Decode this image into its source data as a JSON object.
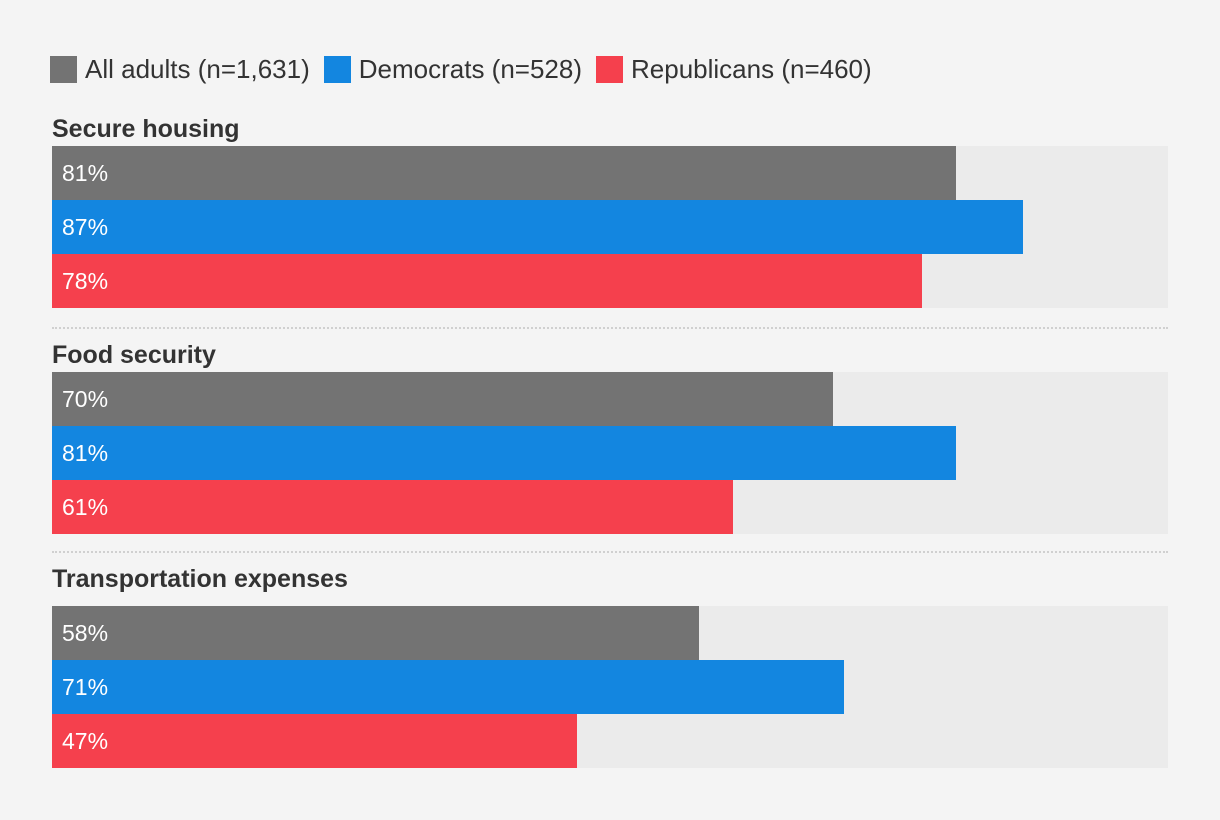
{
  "chart_data": {
    "type": "bar",
    "orientation": "horizontal",
    "title": "",
    "xlabel": "",
    "ylabel": "",
    "xlim": [
      0,
      100
    ],
    "legend_position": "top-left",
    "categories": [
      "Secure housing",
      "Food security",
      "Transportation expenses"
    ],
    "series": [
      {
        "name": "All adults (n=1,631)",
        "color": "#737373",
        "values": [
          81,
          70,
          58
        ],
        "labels": [
          "81%",
          "70%",
          "58%"
        ]
      },
      {
        "name": "Democrats (n=528)",
        "color": "#1386e0",
        "values": [
          87,
          81,
          71
        ],
        "labels": [
          "87%",
          "81%",
          "71%"
        ]
      },
      {
        "name": "Republicans (n=460)",
        "color": "#f5404d",
        "values": [
          78,
          61,
          47
        ],
        "labels": [
          "78%",
          "61%",
          "47%"
        ]
      }
    ]
  },
  "colors": {
    "background": "#f4f4f4",
    "track": "#ebebeb",
    "text": "#333333",
    "bar_text": "#ffffff"
  }
}
